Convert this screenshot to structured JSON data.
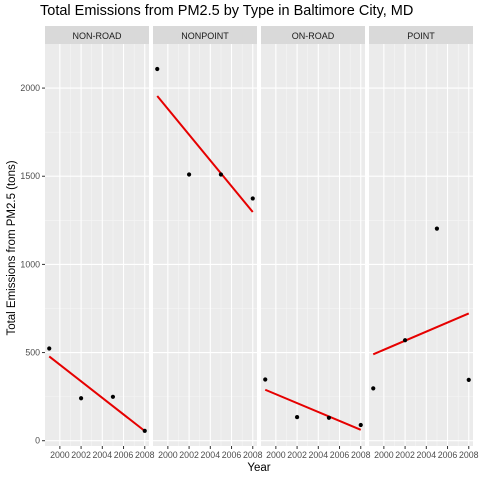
{
  "chart_data": {
    "type": "scatter",
    "title": "Total Emissions from PM2.5 by Type in Baltimore City, MD",
    "xlabel": "Year",
    "ylabel": "Total Emissions from PM2.5 (tons)",
    "x_ticks": [
      2000,
      2002,
      2004,
      2006,
      2008
    ],
    "y_ticks": [
      0,
      500,
      1000,
      1500,
      2000
    ],
    "xlim": [
      1998.6,
      2008.4
    ],
    "ylim": [
      -30,
      2250
    ],
    "grid": true,
    "trend_color": "#e60000",
    "point_color": "#000000",
    "strip_color": "#d9d9d9",
    "panel_color": "#ebebeb",
    "facets": [
      {
        "name": "NON-ROAD",
        "x": [
          1999,
          2002,
          2005,
          2008
        ],
        "y": [
          523,
          241,
          249,
          56
        ],
        "trend": {
          "x": [
            1999,
            2008
          ],
          "y": [
            478,
            55
          ]
        }
      },
      {
        "name": "NONPOINT",
        "x": [
          1999,
          2002,
          2005,
          2008
        ],
        "y": [
          2108,
          1510,
          1510,
          1374
        ],
        "trend": {
          "x": [
            1999,
            2008
          ],
          "y": [
            1955,
            1297
          ]
        }
      },
      {
        "name": "ON-ROAD",
        "x": [
          1999,
          2002,
          2005,
          2008
        ],
        "y": [
          347,
          134,
          130,
          89
        ],
        "trend": {
          "x": [
            1999,
            2008
          ],
          "y": [
            289,
            62
          ]
        }
      },
      {
        "name": "POINT",
        "x": [
          1999,
          2002,
          2005,
          2008
        ],
        "y": [
          297,
          570,
          1203,
          345
        ],
        "trend": {
          "x": [
            1999,
            2008
          ],
          "y": [
            490,
            722
          ]
        }
      }
    ]
  }
}
